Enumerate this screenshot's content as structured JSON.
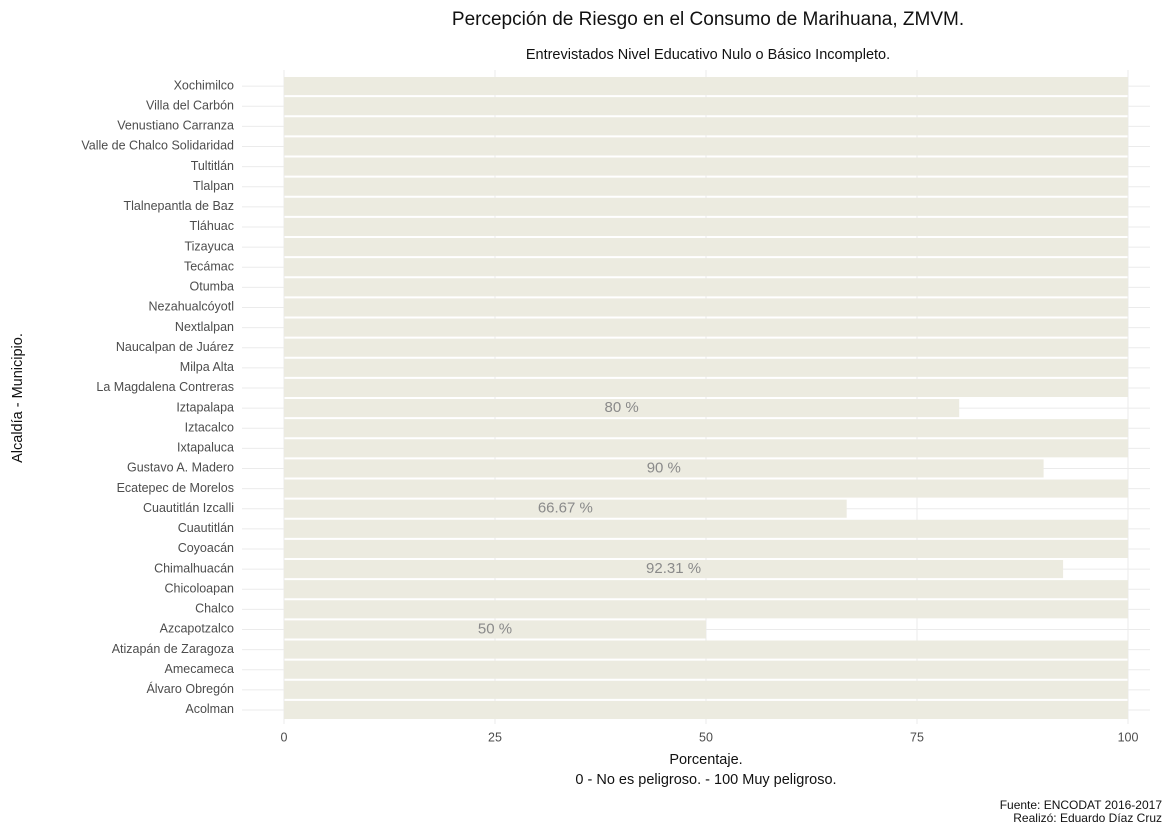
{
  "chart_data": {
    "type": "bar",
    "orientation": "horizontal",
    "title": "Percepción de Riesgo en el Consumo de Marihuana, ZMVM.",
    "subtitle": "Entrevistados Nivel Educativo Nulo o Básico Incompleto.",
    "xlabel": [
      "Porcentaje.",
      "0 - No es peligroso. - 100 Muy peligroso."
    ],
    "ylabel": "Alcaldía - Municipio.",
    "caption": [
      "Fuente: ENCODAT 2016-2017",
      "Realizó: Eduardo Díaz Cruz"
    ],
    "categories": [
      "Acolman",
      "Álvaro Obregón",
      "Amecameca",
      "Atizapán de Zaragoza",
      "Azcapotzalco",
      "Chalco",
      "Chicoloapan",
      "Chimalhuacán",
      "Coyoacán",
      "Cuautitlán",
      "Cuautitlán Izcalli",
      "Ecatepec de Morelos",
      "Gustavo A. Madero",
      "Ixtapaluca",
      "Iztacalco",
      "Iztapalapa",
      "La Magdalena Contreras",
      "Milpa Alta",
      "Naucalpan de Juárez",
      "Nextlalpan",
      "Nezahualcóyotl",
      "Otumba",
      "Tecámac",
      "Tizayuca",
      "Tláhuac",
      "Tlalnepantla de Baz",
      "Tlalpan",
      "Tultitlán",
      "Valle de Chalco Solidaridad",
      "Venustiano Carranza",
      "Villa del Carbón",
      "Xochimilco"
    ],
    "values": [
      100,
      100,
      100,
      100,
      50,
      100,
      100,
      92.31,
      100,
      100,
      66.67,
      100,
      90,
      100,
      100,
      80,
      100,
      100,
      100,
      100,
      100,
      100,
      100,
      100,
      100,
      100,
      100,
      100,
      100,
      100,
      100,
      100
    ],
    "value_labels": [
      null,
      null,
      null,
      null,
      "50 %",
      null,
      null,
      "92.31 %",
      null,
      null,
      "66.67 %",
      null,
      "90 %",
      null,
      null,
      "80 %",
      null,
      null,
      null,
      null,
      null,
      null,
      null,
      null,
      null,
      null,
      null,
      null,
      null,
      null,
      null,
      null
    ],
    "color": "#ecebe0",
    "xlim": [
      0,
      100
    ],
    "xticks": [
      0,
      25,
      50,
      75,
      100
    ],
    "grid": true
  }
}
